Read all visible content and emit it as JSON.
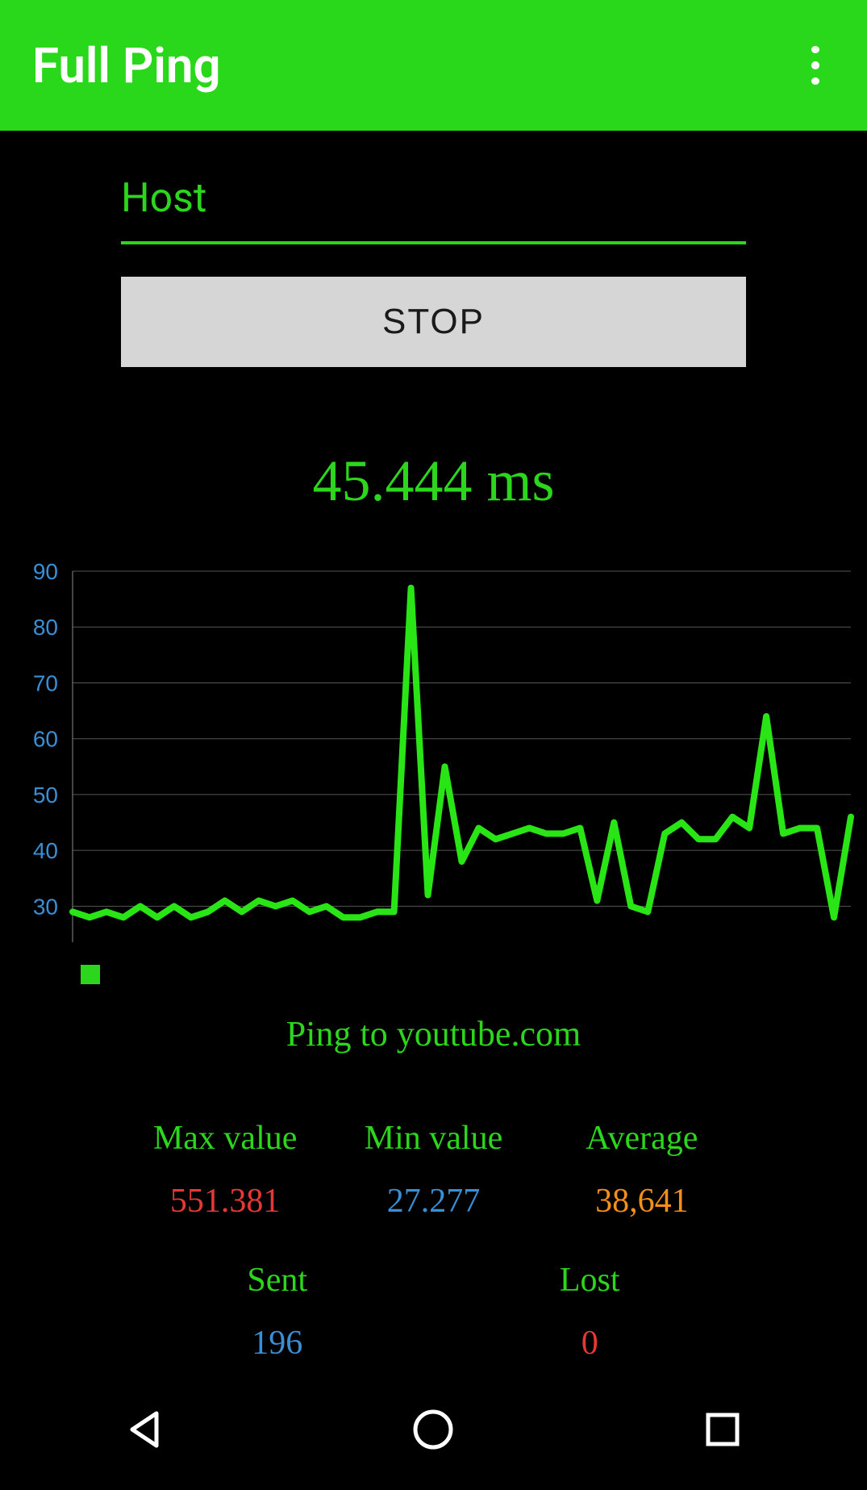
{
  "header": {
    "title": "Full Ping"
  },
  "host_input": {
    "placeholder": "Host",
    "value": "",
    "underline_color": "#2cd61c"
  },
  "action_button": {
    "label": "STOP"
  },
  "current_ping_text": "45.444 ms",
  "chart": {
    "type": "line",
    "line_color": "#29e516",
    "line_width": 8,
    "grid_color": "#555555",
    "axis_color": "#888888",
    "tick_label_color": "#3a8fd4",
    "tick_fontsize": 28,
    "background_color": "#000000",
    "ylim": [
      25,
      90
    ],
    "yticks": [
      30,
      40,
      50,
      60,
      70,
      80,
      90
    ],
    "x_count": 47,
    "values": [
      29,
      28,
      29,
      28,
      30,
      28,
      30,
      28,
      29,
      31,
      29,
      31,
      30,
      31,
      29,
      30,
      28,
      28,
      29,
      29,
      87,
      32,
      55,
      38,
      44,
      42,
      43,
      44,
      43,
      43,
      44,
      31,
      45,
      30,
      29,
      43,
      45,
      42,
      42,
      46,
      44,
      64,
      43,
      44,
      44,
      28,
      46
    ],
    "legend_marker_color": "#2cd61c"
  },
  "ping_target_text": "Ping to youtube.com",
  "stats": {
    "max": {
      "label": "Max value",
      "value": "551.381",
      "color": "#e63935"
    },
    "min": {
      "label": "Min value",
      "value": "27.277",
      "color": "#3a8fd4"
    },
    "avg": {
      "label": "Average",
      "value": "38,641",
      "color": "#f58f18"
    },
    "sent": {
      "label": "Sent",
      "value": "196",
      "color": "#3a8fd4"
    },
    "lost": {
      "label": "Lost",
      "value": "0",
      "color": "#e63935"
    }
  },
  "colors": {
    "brand_green": "#29d81a",
    "text_green": "#2cd61c",
    "bg": "#000000",
    "button_bg": "#d6d6d6"
  }
}
